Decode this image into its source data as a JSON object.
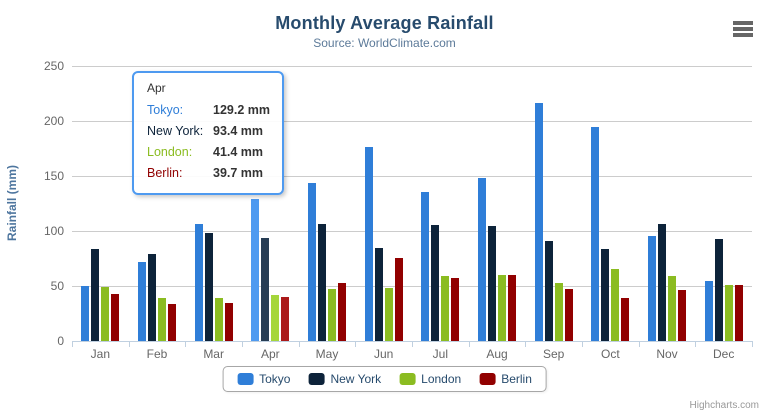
{
  "chart_data": {
    "type": "bar",
    "title": "Monthly Average Rainfall",
    "subtitle": "Source: WorldClimate.com",
    "ylabel": "Rainfall (mm)",
    "xlabel": "",
    "categories": [
      "Jan",
      "Feb",
      "Mar",
      "Apr",
      "May",
      "Jun",
      "Jul",
      "Aug",
      "Sep",
      "Oct",
      "Nov",
      "Dec"
    ],
    "yticks": [
      0,
      50,
      100,
      150,
      200,
      250
    ],
    "ylim": [
      0,
      250
    ],
    "grid": "horizontal",
    "legend_position": "bottom",
    "hovered_category": "Apr",
    "hovered_category_index": 3,
    "series": [
      {
        "name": "Tokyo",
        "color": "#2f7ed8",
        "hover_color": "#4e9af0",
        "values": [
          49.9,
          71.5,
          106.4,
          129.2,
          144.0,
          176.0,
          135.6,
          148.5,
          216.4,
          194.1,
          95.6,
          54.4
        ]
      },
      {
        "name": "New York",
        "color": "#0d233a",
        "hover_color": "#273d54",
        "values": [
          83.6,
          78.8,
          98.5,
          93.4,
          106.0,
          84.5,
          105.0,
          104.3,
          91.2,
          83.5,
          106.6,
          92.3
        ]
      },
      {
        "name": "London",
        "color": "#8bbc21",
        "hover_color": "#a5d63b",
        "values": [
          48.9,
          38.8,
          39.3,
          41.4,
          47.0,
          48.3,
          59.0,
          59.6,
          52.4,
          65.2,
          59.3,
          51.2
        ]
      },
      {
        "name": "Berlin",
        "color": "#910000",
        "hover_color": "#ab1a1a",
        "values": [
          42.4,
          33.2,
          34.5,
          39.7,
          52.6,
          75.5,
          57.4,
          60.4,
          47.6,
          39.1,
          46.8,
          51.1
        ]
      }
    ]
  },
  "tooltip": {
    "header": "Apr",
    "border_color": "#4e9af0",
    "rows": [
      {
        "label": "Tokyo:",
        "color": "#2f7ed8",
        "value": "129.2 mm"
      },
      {
        "label": "New York:",
        "color": "#0d233a",
        "value": "93.4 mm"
      },
      {
        "label": "London:",
        "color": "#8bbc21",
        "value": "41.4 mm"
      },
      {
        "label": "Berlin:",
        "color": "#910000",
        "value": "39.7 mm"
      }
    ]
  },
  "credits": "Highcharts.com",
  "icons": {
    "context_menu": "hamburger-icon"
  },
  "palette": {
    "title_color": "#274b6d",
    "subtitle_color": "#5c7a99",
    "axis_title_color": "#4d759e",
    "axis_label_color": "#666666",
    "grid_color": "#cccccc",
    "axis_line_color": "#c0d0e0",
    "legend_text_color": "#274b6d"
  }
}
